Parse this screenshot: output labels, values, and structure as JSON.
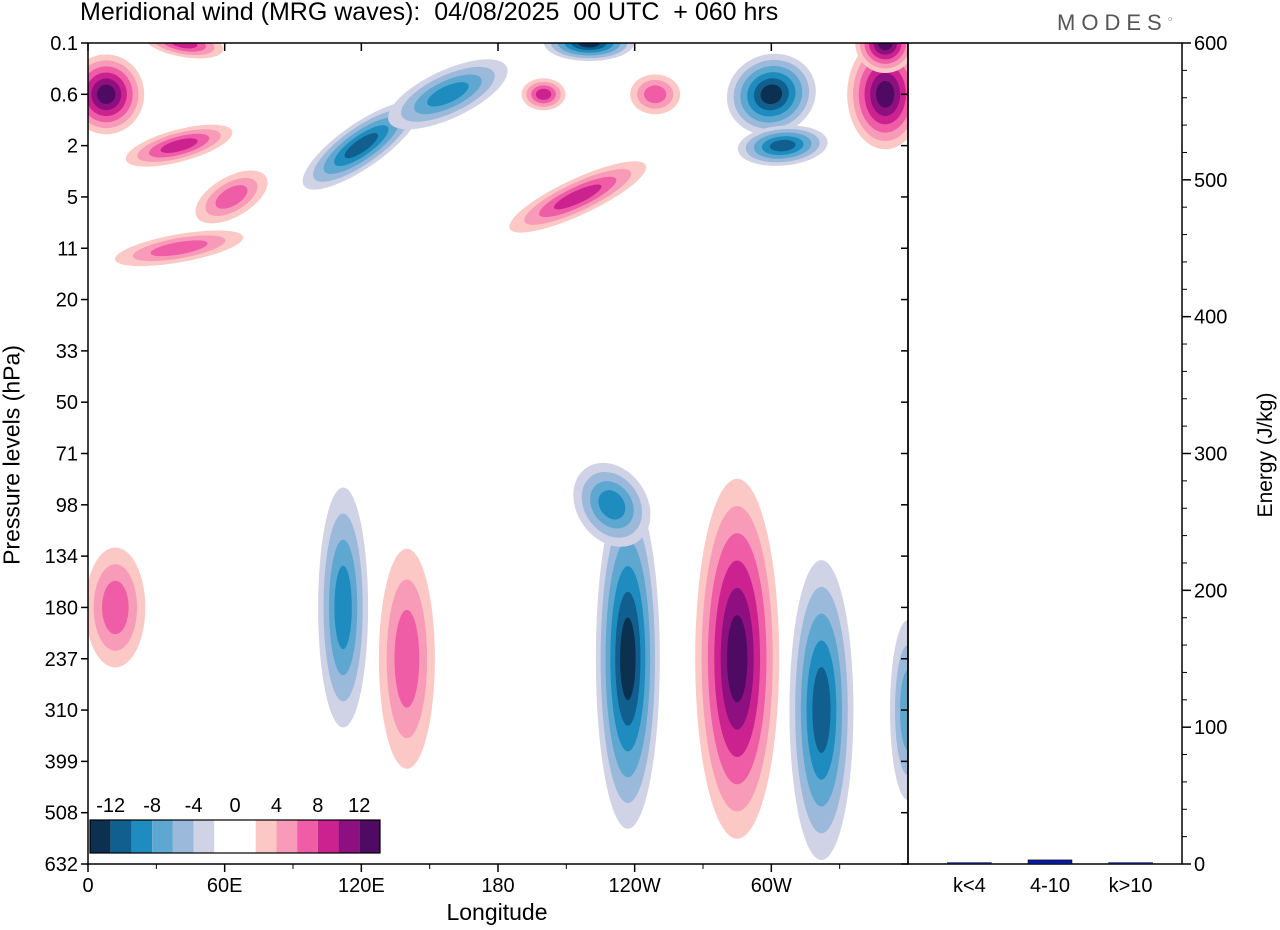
{
  "title": "Meridional wind (MRG waves):  04/08/2025  00 UTC  + 060 hrs",
  "brand": "MODES",
  "chart_data": [
    {
      "type": "heatmap",
      "title": "Meridional wind (MRG waves)",
      "xlabel": "Longitude",
      "ylabel": "Pressure levels (hPa)",
      "x_ticks": [
        "0",
        "60E",
        "120E",
        "180",
        "120W",
        "60W"
      ],
      "x_tick_degrees": [
        0,
        60,
        120,
        180,
        240,
        300
      ],
      "x_range": [
        0,
        360
      ],
      "y_levels": [
        "0.1",
        "0.6",
        "2",
        "5",
        "11",
        "20",
        "33",
        "50",
        "71",
        "98",
        "134",
        "180",
        "237",
        "310",
        "399",
        "508",
        "632"
      ],
      "colorbar": {
        "labels": [
          "-12",
          "-8",
          "-4",
          "0",
          "4",
          "8",
          "12"
        ],
        "levels": [
          -14,
          -12,
          -10,
          -8,
          -6,
          -4,
          -2,
          2,
          4,
          6,
          8,
          10,
          12,
          14
        ],
        "colors": [
          "#0b3050",
          "#105f8e",
          "#1f8cc0",
          "#5ea7d0",
          "#9ab9db",
          "#d0d2e6",
          "#ffffff",
          "#ffffff",
          "#fbc8c5",
          "#f89bb8",
          "#ee5da6",
          "#cc2290",
          "#8e0f80",
          "#4f0a63"
        ]
      },
      "features": [
        {
          "lon": 8,
          "level": "0.6",
          "value": 14
        },
        {
          "lon": 42,
          "level": "0.1",
          "value": 9
        },
        {
          "lon": 40,
          "level": "2",
          "value": 8
        },
        {
          "lon": 40,
          "level": "11",
          "value": 6
        },
        {
          "lon": 63,
          "level": "5",
          "value": 6
        },
        {
          "lon": 120,
          "level": "2",
          "value": -10
        },
        {
          "lon": 158,
          "level": "0.6",
          "value": -9
        },
        {
          "lon": 220,
          "level": "0.1",
          "value": -12
        },
        {
          "lon": 200,
          "level": "0.6",
          "value": 8
        },
        {
          "lon": 215,
          "level": "5",
          "value": 9
        },
        {
          "lon": 249,
          "level": "0.6",
          "value": 7
        },
        {
          "lon": 300,
          "level": "0.6",
          "value": -13
        },
        {
          "lon": 305,
          "level": "2",
          "value": -11
        },
        {
          "lon": 350,
          "level": "0.6",
          "value": 14
        },
        {
          "lon": 350,
          "level": "0.1",
          "value": 14
        },
        {
          "lon": 12,
          "level": "180",
          "value": 7
        },
        {
          "lon": 112,
          "level": "180",
          "value": -8
        },
        {
          "lon": 140,
          "level": "237",
          "value": 7
        },
        {
          "lon": 237,
          "level": "237",
          "value": -13
        },
        {
          "lon": 285,
          "level": "237",
          "value": 14
        },
        {
          "lon": 322,
          "level": "310",
          "value": -11
        },
        {
          "lon": 230,
          "level": "98",
          "value": -8
        },
        {
          "lon": 360,
          "level": "310",
          "value": -7
        }
      ]
    },
    {
      "type": "bar",
      "ylabel": "Energy (J/kg)",
      "ylim": [
        0,
        600
      ],
      "y_ticks": [
        "0",
        "100",
        "200",
        "300",
        "400",
        "500",
        "600"
      ],
      "categories": [
        "k<4",
        "4-10",
        "k>10"
      ],
      "values": [
        1,
        3,
        1
      ],
      "bar_color": "#0a1a9c"
    }
  ]
}
